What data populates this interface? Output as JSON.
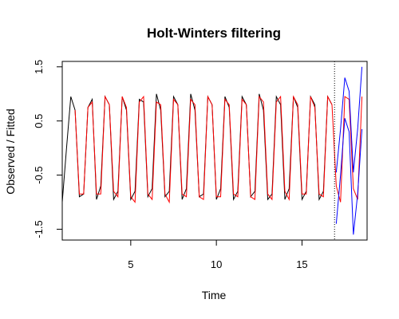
{
  "chart_data": {
    "type": "line",
    "title": "Holt-Winters filtering",
    "xlabel": "Time",
    "ylabel": "Observed / Fitted",
    "xlim": [
      1,
      18.8
    ],
    "ylim": [
      -1.7,
      1.6
    ],
    "x_ticks": [
      5,
      10,
      15
    ],
    "y_ticks": [
      -1.5,
      -0.5,
      0.5,
      1.5
    ],
    "grid": false,
    "forecast_start": 16.9,
    "series": [
      {
        "role": "observed",
        "color": "#000000",
        "x": [
          1.0,
          1.25,
          1.5,
          1.75,
          2.0,
          2.25,
          2.5,
          2.75,
          3.0,
          3.25,
          3.5,
          3.75,
          4.0,
          4.25,
          4.5,
          4.75,
          5.0,
          5.25,
          5.5,
          5.75,
          6.0,
          6.25,
          6.5,
          6.75,
          7.0,
          7.25,
          7.5,
          7.75,
          8.0,
          8.25,
          8.5,
          8.75,
          9.0,
          9.25,
          9.5,
          9.75,
          10.0,
          10.25,
          10.5,
          10.75,
          11.0,
          11.25,
          11.5,
          11.75,
          12.0,
          12.25,
          12.5,
          12.75,
          13.0,
          13.25,
          13.5,
          13.75,
          14.0,
          14.25,
          14.5,
          14.75,
          15.0,
          15.25,
          15.5,
          15.75,
          16.0,
          16.25,
          16.5,
          16.75
        ],
        "y": [
          -1.0,
          0.0,
          0.95,
          0.7,
          -0.9,
          -0.85,
          0.75,
          0.9,
          -0.95,
          -0.7,
          0.95,
          0.8,
          -0.95,
          -0.8,
          0.95,
          0.7,
          -0.95,
          -0.8,
          0.9,
          0.85,
          -0.9,
          -0.75,
          1.0,
          0.7,
          -0.9,
          -0.8,
          0.95,
          0.8,
          -0.95,
          -0.75,
          1.0,
          0.7,
          -0.9,
          -0.85,
          0.95,
          0.8,
          -0.95,
          -0.75,
          0.95,
          0.75,
          -0.95,
          -0.8,
          0.95,
          0.8,
          -0.9,
          -0.8,
          1.0,
          0.7,
          -0.95,
          -0.85,
          0.95,
          0.8,
          -0.95,
          -0.75,
          0.95,
          0.75,
          -0.95,
          -0.8,
          0.95,
          0.8,
          -0.95,
          -0.8,
          0.95,
          0.8
        ]
      },
      {
        "role": "fitted",
        "color": "#ff0000",
        "x": [
          1.75,
          2.0,
          2.25,
          2.5,
          2.75,
          3.0,
          3.25,
          3.5,
          3.75,
          4.0,
          4.25,
          4.5,
          4.75,
          5.0,
          5.25,
          5.5,
          5.75,
          6.0,
          6.25,
          6.5,
          6.75,
          7.0,
          7.25,
          7.5,
          7.75,
          8.0,
          8.25,
          8.5,
          8.75,
          9.0,
          9.25,
          9.5,
          9.75,
          10.0,
          10.25,
          10.5,
          10.75,
          11.0,
          11.25,
          11.5,
          11.75,
          12.0,
          12.25,
          12.5,
          12.75,
          13.0,
          13.25,
          13.5,
          13.75,
          14.0,
          14.25,
          14.5,
          14.75,
          15.0,
          15.25,
          15.5,
          15.75,
          16.0,
          16.25,
          16.5,
          16.75,
          17.0,
          17.25,
          17.5,
          17.75,
          18.0,
          18.25,
          18.5
        ],
        "y": [
          0.7,
          -0.85,
          -0.85,
          0.75,
          0.85,
          -0.85,
          -0.85,
          0.95,
          0.8,
          -0.8,
          -0.9,
          0.95,
          0.75,
          -0.9,
          -1.0,
          0.85,
          0.95,
          -0.85,
          -0.95,
          0.85,
          0.8,
          -0.85,
          -1.0,
          0.9,
          0.8,
          -0.85,
          -0.9,
          0.9,
          0.8,
          -0.9,
          -0.95,
          0.95,
          0.8,
          -0.9,
          -0.9,
          0.9,
          0.8,
          -0.85,
          -0.9,
          0.9,
          0.8,
          -0.9,
          -0.95,
          0.95,
          0.85,
          -0.85,
          -0.95,
          0.85,
          0.95,
          -0.8,
          -0.95,
          0.95,
          0.8,
          -0.85,
          -0.85,
          0.95,
          0.75,
          -0.85,
          -0.9,
          0.95,
          0.8,
          -0.7,
          -1.0,
          0.95,
          0.9,
          -0.75,
          -0.95,
          0.95
        ]
      },
      {
        "role": "forecast upper",
        "color": "#0000ff",
        "x": [
          17.0,
          17.25,
          17.5,
          17.75,
          18.0,
          18.25,
          18.5
        ],
        "y": [
          -0.45,
          0.35,
          1.3,
          1.05,
          -0.45,
          0.35,
          1.5
        ]
      },
      {
        "role": "forecast lower",
        "color": "#0000ff",
        "x": [
          17.0,
          17.25,
          17.5,
          17.75,
          18.0,
          18.25,
          18.5
        ],
        "y": [
          -1.4,
          -0.5,
          0.55,
          0.3,
          -1.6,
          -0.85,
          0.35
        ]
      }
    ]
  }
}
